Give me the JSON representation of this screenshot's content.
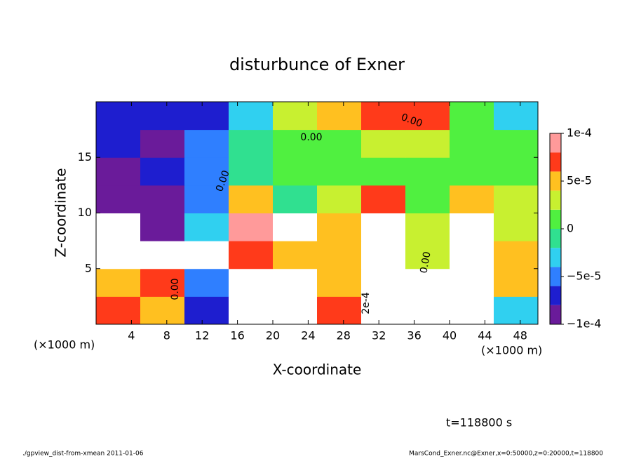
{
  "chart_data": {
    "type": "contour",
    "title": "disturbunce of Exner",
    "x_label": "X-coordinate",
    "y_label": "Z-coordinate",
    "x_unit": "(×1000 m)",
    "x_unit_right": "(×1000 m)",
    "time_label": "t=118800 s",
    "footer_left": "./gpview_dist-from-xmean  2011-01-06",
    "footer_right": "MarsCond_Exner.nc@Exner,x=0:50000,z=0:20000,t=118800",
    "xlim": [
      0,
      50
    ],
    "ylim": [
      0,
      20
    ],
    "xticks": [
      4,
      8,
      12,
      16,
      20,
      24,
      28,
      32,
      36,
      40,
      44,
      48
    ],
    "yticks": [
      5,
      10,
      15
    ],
    "x": [
      2.5,
      7.5,
      12.5,
      17.5,
      22.5,
      27.5,
      32.5,
      37.5,
      42.5,
      47.5
    ],
    "y": [
      1.25,
      3.75,
      6.25,
      8.75,
      11.25,
      13.75,
      16.25,
      18.75
    ],
    "values": [
      [
        7e-05,
        6e-05,
        -6e-05,
        0.00011,
        0.00014,
        8e-05,
        0.00016,
        -0.00014,
        -0.00015,
        -3e-05
      ],
      [
        5e-05,
        8e-05,
        -4e-05,
        0.00012,
        0.00013,
        6e-05,
        0.00015,
        -0.00012,
        -0.00013,
        5e-05
      ],
      [
        0.00012,
        0.00011,
        0.00012,
        8e-05,
        6e-05,
        5e-05,
        0.00012,
        4e-05,
        0.00012,
        6e-05
      ],
      [
        0.00012,
        -0.0001,
        -3e-05,
        0.0001,
        -0.00011,
        6e-05,
        0.00011,
        3e-05,
        0.00011,
        4e-05
      ],
      [
        -0.0001,
        -8e-05,
        -4e-05,
        5e-05,
        0.0,
        4e-05,
        7e-05,
        2e-05,
        5e-05,
        3e-05
      ],
      [
        -8e-05,
        -6e-05,
        -4e-05,
        0.0,
        1e-05,
        2e-05,
        2e-05,
        1e-05,
        1e-05,
        2e-05
      ],
      [
        -7e-05,
        -8e-05,
        -5e-05,
        0.0,
        2e-05,
        2e-05,
        3e-05,
        4e-05,
        1e-05,
        1e-05
      ],
      [
        -6e-05,
        -7e-05,
        -6e-05,
        -2e-05,
        4e-05,
        6e-05,
        8e-05,
        7e-05,
        2e-05,
        -2e-05
      ]
    ],
    "levels": [
      -0.0001,
      -8e-05,
      -6e-05,
      -4e-05,
      -2e-05,
      0,
      2e-05,
      4e-05,
      6e-05,
      8e-05,
      0.0001
    ],
    "colors": [
      "#6a1b9a",
      "#1e1ecf",
      "#2f7fff",
      "#30d0f0",
      "#30e090",
      "#50f040",
      "#c8f030",
      "#ffc020",
      "#ff3a1a",
      "#ff9a9a"
    ],
    "cticks": [
      {
        "value": -0.0001,
        "label": "−1e-4"
      },
      {
        "value": -5e-05,
        "label": "−5e-5"
      },
      0,
      {
        "value": 5e-05,
        "label": "5e-5"
      },
      {
        "value": 0.0001,
        "label": "1e-4"
      }
    ],
    "contour_labels": [
      "0.00",
      "0.00",
      "0.00",
      "0.00",
      "0.00",
      "2e-4"
    ]
  }
}
